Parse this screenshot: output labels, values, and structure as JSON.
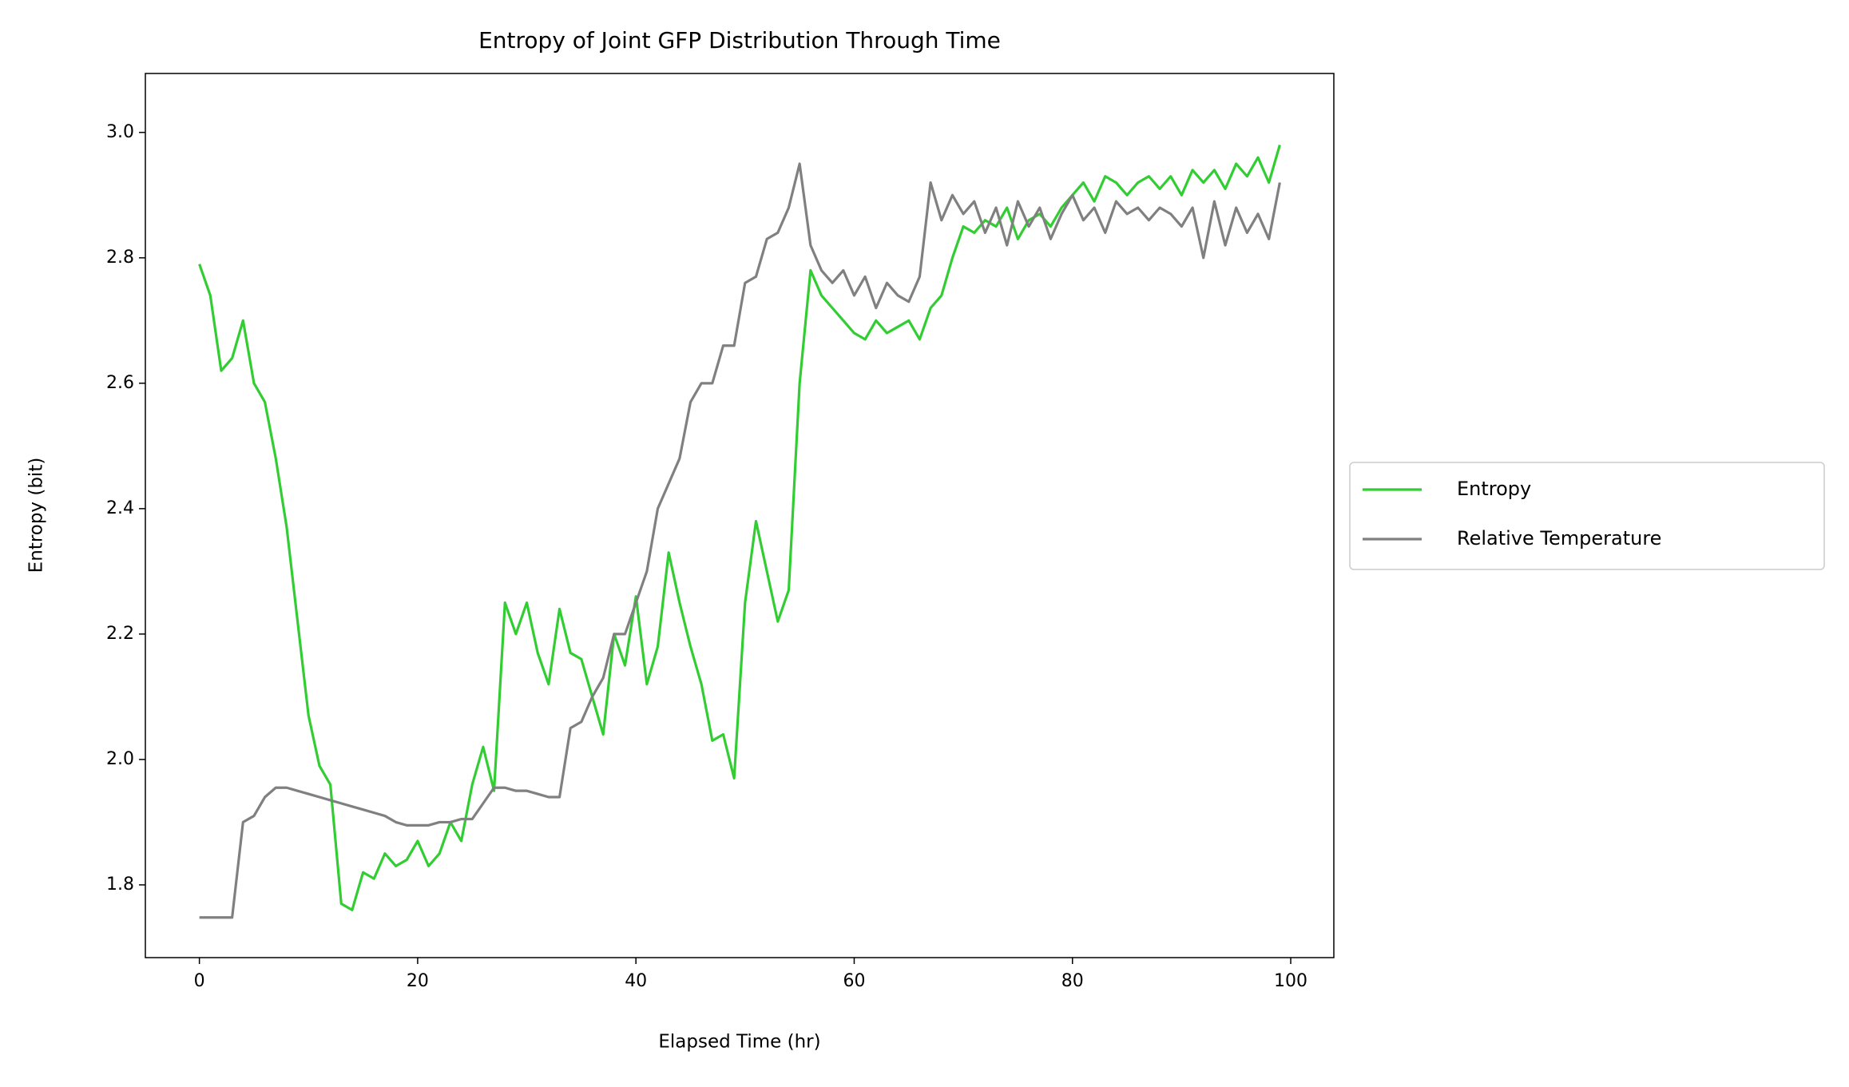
{
  "chart_data": {
    "type": "line",
    "title": "Entropy of Joint GFP Distribution Through Time",
    "xlabel": "Elapsed Time (hr)",
    "ylabel": "Entropy (bit)",
    "legend": "outside-right",
    "grid": false,
    "xlim": [
      -4.95,
      103.95
    ],
    "ylim": [
      1.684,
      3.094
    ],
    "xticks": [
      0,
      20,
      40,
      60,
      80,
      100
    ],
    "yticks": [
      1.8,
      {
        "value": 2.0,
        "label": "2.0"
      },
      2.2,
      2.4,
      2.6,
      2.8,
      {
        "value": 3.0,
        "label": "3.0"
      }
    ],
    "x": [
      0,
      1,
      2,
      3,
      4,
      5,
      6,
      7,
      8,
      9,
      10,
      11,
      12,
      13,
      14,
      15,
      16,
      17,
      18,
      19,
      20,
      21,
      22,
      23,
      24,
      25,
      26,
      27,
      28,
      29,
      30,
      31,
      32,
      33,
      34,
      35,
      36,
      37,
      38,
      39,
      40,
      41,
      42,
      43,
      44,
      45,
      46,
      47,
      48,
      49,
      50,
      51,
      52,
      53,
      54,
      55,
      56,
      57,
      58,
      59,
      60,
      61,
      62,
      63,
      64,
      65,
      66,
      67,
      68,
      69,
      70,
      71,
      72,
      73,
      74,
      75,
      76,
      77,
      78,
      79,
      80,
      81,
      82,
      83,
      84,
      85,
      86,
      87,
      88,
      89,
      90,
      91,
      92,
      93,
      94,
      95,
      96,
      97,
      98,
      99
    ],
    "series": [
      {
        "name": "Entropy",
        "color": "#32cd32",
        "values": [
          2.79,
          2.74,
          2.62,
          2.64,
          2.7,
          2.6,
          2.57,
          2.48,
          2.37,
          2.22,
          2.07,
          1.99,
          1.96,
          1.77,
          1.76,
          1.82,
          1.81,
          1.85,
          1.83,
          1.84,
          1.87,
          1.83,
          1.85,
          1.9,
          1.87,
          1.96,
          2.02,
          1.95,
          2.25,
          2.2,
          2.25,
          2.17,
          2.12,
          2.24,
          2.17,
          2.16,
          2.1,
          2.04,
          2.2,
          2.15,
          2.26,
          2.12,
          2.18,
          2.33,
          2.25,
          2.18,
          2.12,
          2.03,
          2.04,
          1.97,
          2.25,
          2.38,
          2.3,
          2.22,
          2.27,
          2.6,
          2.78,
          2.74,
          2.72,
          2.7,
          2.68,
          2.67,
          2.7,
          2.68,
          2.69,
          2.7,
          2.67,
          2.72,
          2.74,
          2.8,
          2.85,
          2.84,
          2.86,
          2.85,
          2.88,
          2.83,
          2.86,
          2.87,
          2.85,
          2.88,
          2.9,
          2.92,
          2.89,
          2.93,
          2.92,
          2.9,
          2.92,
          2.93,
          2.91,
          2.93,
          2.9,
          2.94,
          2.92,
          2.94,
          2.91,
          2.95,
          2.93,
          2.96,
          2.92,
          2.98
        ]
      },
      {
        "name": "Relative Temperature",
        "color": "#808080",
        "values": [
          1.748,
          1.748,
          1.748,
          1.748,
          1.9,
          1.91,
          1.94,
          1.955,
          1.955,
          1.95,
          1.945,
          1.94,
          1.935,
          1.93,
          1.925,
          1.92,
          1.915,
          1.91,
          1.9,
          1.895,
          1.895,
          1.895,
          1.9,
          1.9,
          1.905,
          1.905,
          1.93,
          1.955,
          1.955,
          1.95,
          1.95,
          1.945,
          1.94,
          1.94,
          2.05,
          2.06,
          2.1,
          2.13,
          2.2,
          2.2,
          2.25,
          2.3,
          2.4,
          2.44,
          2.48,
          2.57,
          2.6,
          2.6,
          2.66,
          2.66,
          2.76,
          2.77,
          2.83,
          2.84,
          2.88,
          2.95,
          2.82,
          2.78,
          2.76,
          2.78,
          2.74,
          2.77,
          2.72,
          2.76,
          2.74,
          2.73,
          2.77,
          2.92,
          2.86,
          2.9,
          2.87,
          2.89,
          2.84,
          2.88,
          2.82,
          2.89,
          2.85,
          2.88,
          2.83,
          2.87,
          2.9,
          2.86,
          2.88,
          2.84,
          2.89,
          2.87,
          2.88,
          2.86,
          2.88,
          2.87,
          2.85,
          2.88,
          2.8,
          2.89,
          2.82,
          2.88,
          2.84,
          2.87,
          2.83,
          2.92
        ]
      }
    ]
  }
}
